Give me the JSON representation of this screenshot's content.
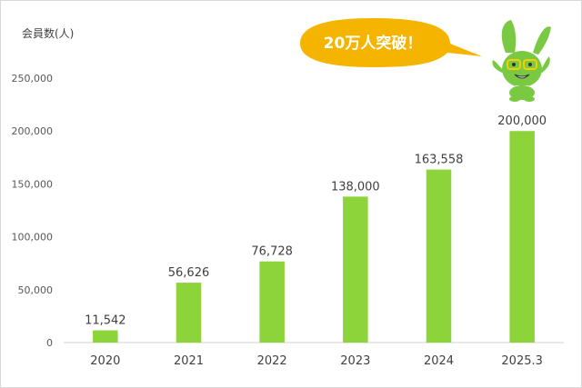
{
  "chart_data": {
    "type": "bar",
    "ylabel": "会員数(人)",
    "categories": [
      "2020",
      "2021",
      "2022",
      "2023",
      "2024",
      "2025.3"
    ],
    "values": [
      11542,
      56626,
      76728,
      138000,
      163558,
      200000
    ],
    "data_labels": [
      "11,542",
      "56,626",
      "76,728",
      "138,000",
      "163,558",
      "200,000"
    ],
    "yticks": [
      "0",
      "50,000",
      "100,000",
      "150,000",
      "200,000",
      "250,000"
    ],
    "ylim": [
      0,
      250000
    ],
    "grid": false,
    "bar_color": "#8dd43a"
  },
  "callout": {
    "text": "20万人突破！",
    "color": "#f4b400"
  },
  "mascot": {
    "icon": "green-rabbit-mascot-icon",
    "color": "#7ac943"
  }
}
